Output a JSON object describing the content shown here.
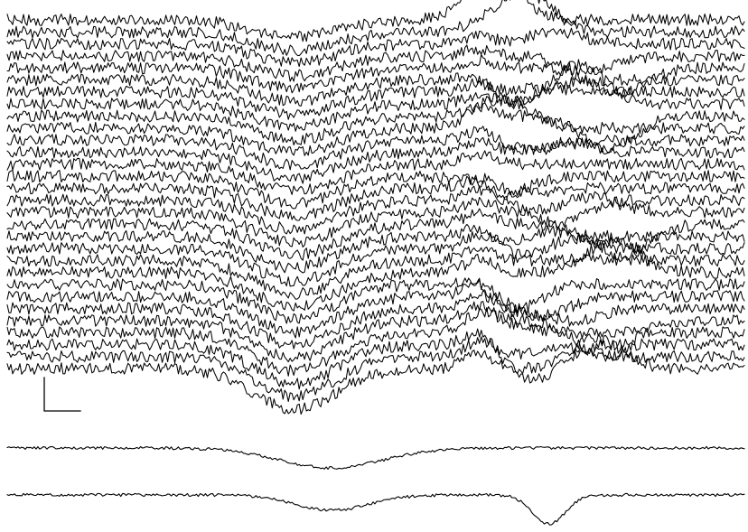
{
  "colors": {
    "background": "#ffffff",
    "trace": "#000000"
  },
  "chart_data": {
    "type": "line",
    "title": "",
    "xlabel": "",
    "ylabel": "",
    "grid": false,
    "legend": "none",
    "axes_visible": false,
    "scale_bar": {
      "labeled": false,
      "shape": "L"
    },
    "panels": [
      {
        "id": "single-trial-traces",
        "trial_count": 30,
        "samples_per_trace": 410,
        "noise": "high",
        "description_values": {
          "baseline_offsets": [
            0,
            14,
            28,
            42,
            56,
            70,
            84,
            98,
            112,
            126,
            140,
            154,
            168,
            182,
            196,
            210,
            224,
            238,
            252,
            266,
            280,
            294,
            308,
            322,
            336,
            350,
            364,
            378,
            392,
            406
          ],
          "shared_events": [
            {
              "center": 0.39,
              "width": 0.055,
              "depth": 32
            },
            {
              "center": 0.64,
              "width": 0.02,
              "depth": -12
            }
          ],
          "late_event": {
            "center_range": [
              0.66,
              0.84
            ],
            "depth_range": [
              -46,
              44
            ]
          }
        }
      },
      {
        "id": "average-trace-1",
        "samples": 410,
        "events": [
          {
            "center": 0.44,
            "width": 0.07,
            "depth": 22
          }
        ]
      },
      {
        "id": "average-trace-2",
        "samples": 410,
        "events": [
          {
            "center": 0.44,
            "width": 0.05,
            "depth": 17
          },
          {
            "center": 0.735,
            "width": 0.022,
            "depth": 32
          }
        ]
      }
    ]
  }
}
